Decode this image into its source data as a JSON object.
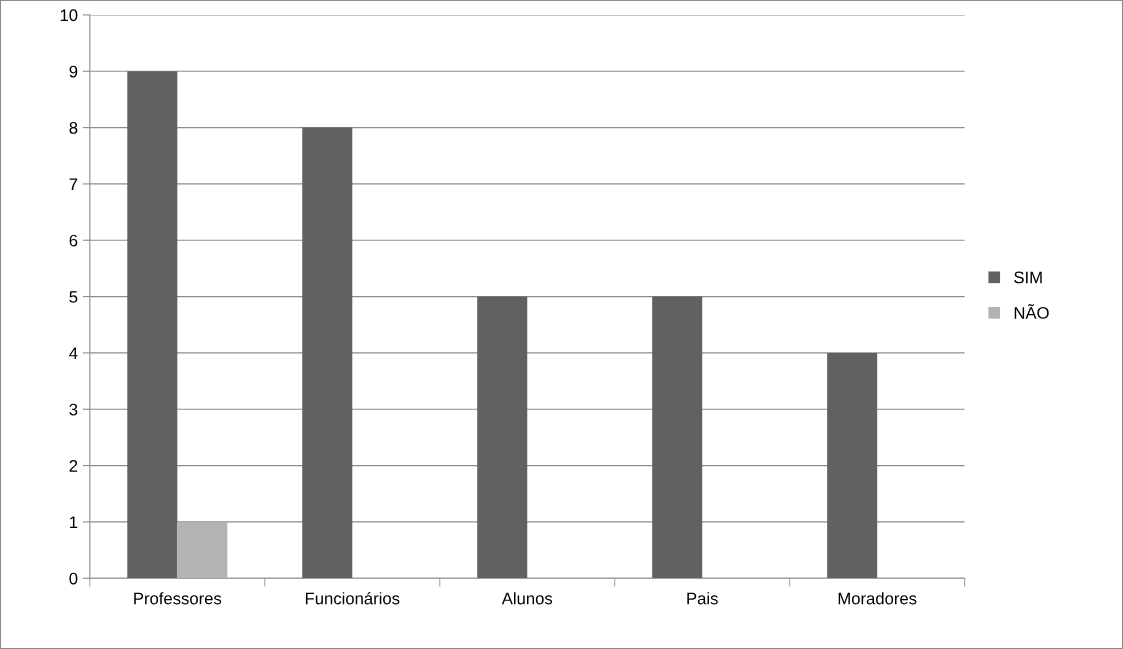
{
  "chart_data": {
    "type": "bar",
    "categories": [
      "Professores",
      "Funcionários",
      "Alunos",
      "Pais",
      "Moradores"
    ],
    "series": [
      {
        "name": "SIM",
        "color": "#616161",
        "values": [
          9,
          8,
          5,
          5,
          4
        ]
      },
      {
        "name": "NÃO",
        "color": "#b3b3b3",
        "values": [
          1,
          0,
          0,
          0,
          0
        ]
      }
    ],
    "ylim": [
      0,
      10
    ],
    "yticks": [
      0,
      1,
      2,
      3,
      4,
      5,
      6,
      7,
      8,
      9,
      10
    ],
    "grid": "y",
    "legend": "right"
  }
}
